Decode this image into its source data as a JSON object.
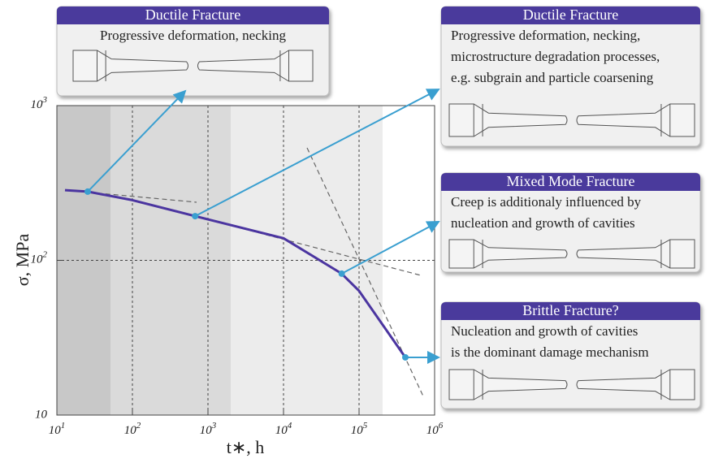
{
  "chart_data": {
    "type": "line",
    "x_label": "t∗, h",
    "y_label": "σ, MPa",
    "log_x": true,
    "log_y": true,
    "grid": true,
    "xlim": [
      10,
      1000000
    ],
    "ylim": [
      10,
      1000
    ],
    "xticks": [
      {
        "value": 10,
        "label": "10",
        "sup": "1"
      },
      {
        "value": 100,
        "label": "10",
        "sup": "2"
      },
      {
        "value": 1000,
        "label": "10",
        "sup": "3"
      },
      {
        "value": 10000,
        "label": "10",
        "sup": "4"
      },
      {
        "value": 100000,
        "label": "10",
        "sup": "5"
      },
      {
        "value": 1000000,
        "label": "10",
        "sup": "6"
      }
    ],
    "yticks": [
      10,
      {
        "value": 100,
        "label": "10",
        "sup": "2"
      },
      {
        "value": 1000,
        "label": "10",
        "sup": "3"
      }
    ],
    "series": [
      {
        "color": "#4b35a0",
        "x": [
          12.8,
          25.6,
          100,
          676,
          1000,
          10000,
          58900,
          100000,
          410000
        ],
        "values": [
          284,
          278,
          245,
          193,
          184,
          139,
          82,
          63.5,
          23.6
        ]
      },
      {
        "color": "#3a9fd0",
        "markers": true,
        "x": [
          25.6,
          676,
          58900,
          410000
        ],
        "values": [
          278,
          193,
          82,
          23.6
        ]
      }
    ],
    "annotations": [
      {
        "title": "Ductile Fracture",
        "lines": [
          "Progressive deformation, necking"
        ]
      },
      {
        "title": "Ductile Fracture",
        "lines": [
          "Progressive deformation, necking,",
          "microstructure degradation processes,",
          "e.g. subgrain and particle coarsening"
        ]
      },
      {
        "title": "Mixed Mode Fracture",
        "lines": [
          "Creep is additionaly influenced by",
          "nucleation and growth of cavities"
        ]
      },
      {
        "title": "Brittle Fracture?",
        "lines": [
          "Nucleation and growth of cavities",
          "is the dominant damage mechanism"
        ]
      }
    ]
  }
}
